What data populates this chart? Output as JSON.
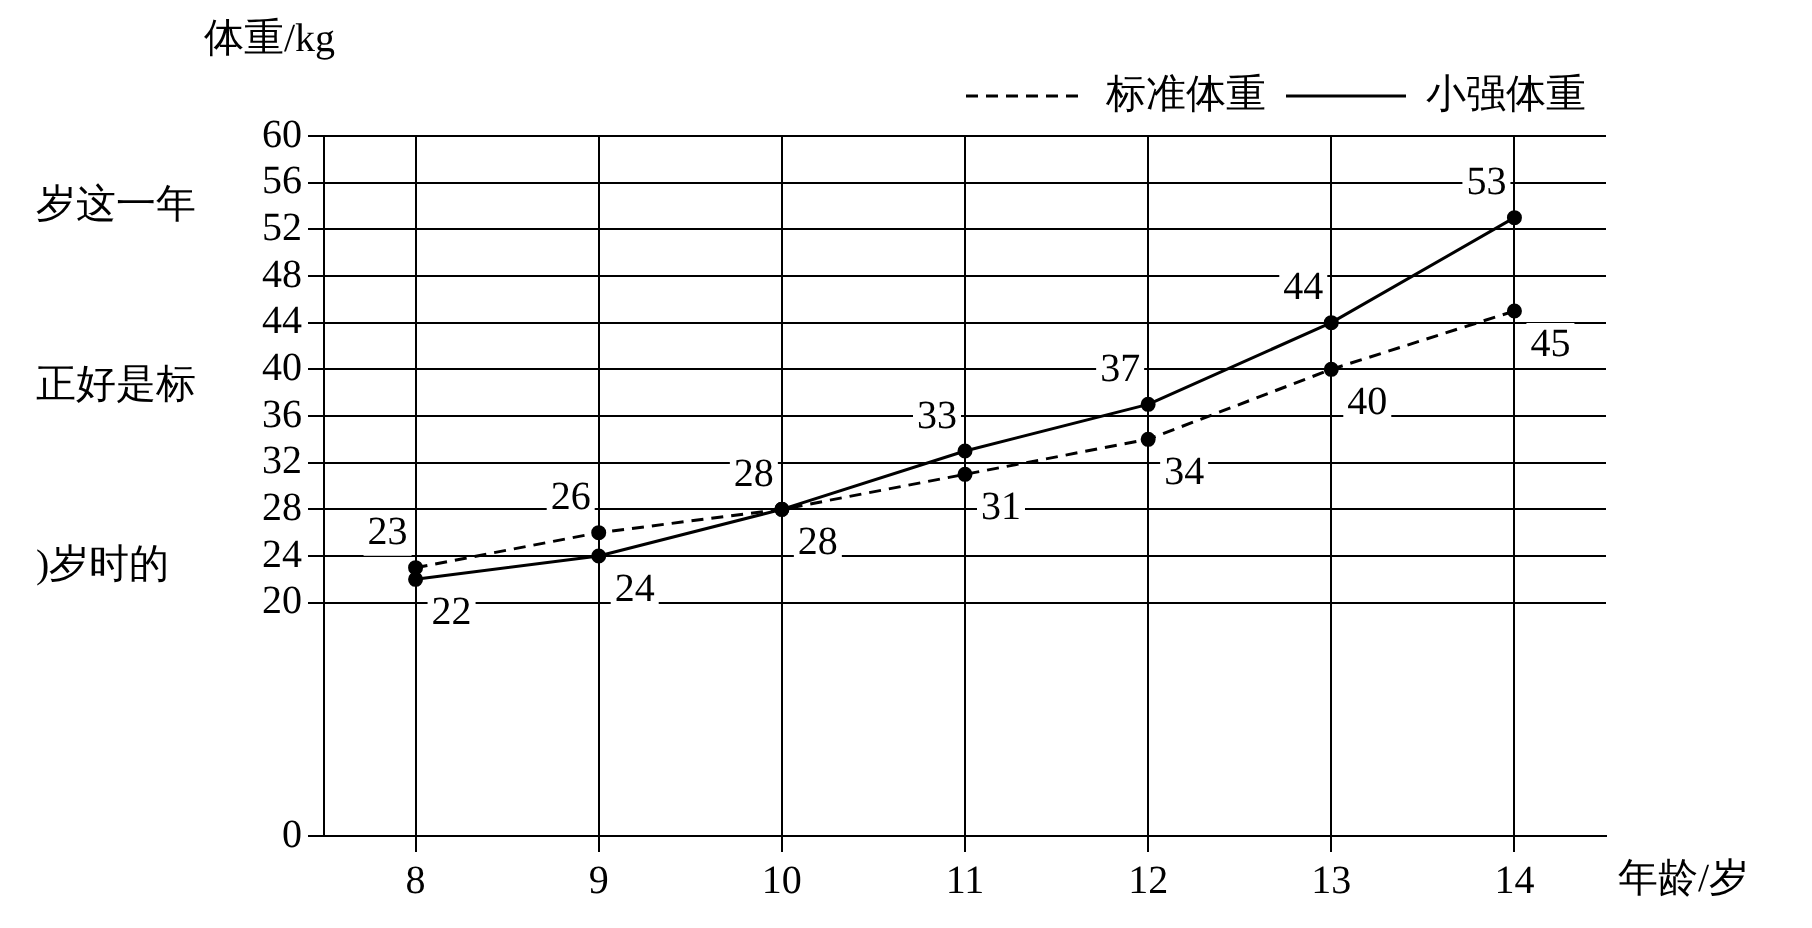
{
  "chart_data": {
    "type": "line",
    "xlabel": "年龄/岁",
    "ylabel": "体重/kg",
    "x": [
      8,
      9,
      10,
      11,
      12,
      13,
      14
    ],
    "series": [
      {
        "name": "标准体重",
        "color": "#000000",
        "line_style": "dashed",
        "values": [
          23,
          26,
          28,
          31,
          34,
          40,
          45
        ]
      },
      {
        "name": "小强体重",
        "color": "#000000",
        "line_style": "solid",
        "values": [
          22,
          24,
          28,
          33,
          37,
          44,
          53
        ]
      }
    ],
    "xlim": [
      7.5,
      14.5
    ],
    "xticks": [
      8,
      9,
      10,
      11,
      12,
      13,
      14
    ],
    "ylim": [
      0,
      60
    ],
    "yticks": [
      0,
      20,
      24,
      28,
      32,
      36,
      40,
      44,
      48,
      52,
      56,
      60
    ],
    "grid": true,
    "legend": "top right",
    "marker": "circle",
    "data_labels": true,
    "annotations": [
      "岁这一年",
      "正好是标",
      ")岁时的"
    ]
  }
}
